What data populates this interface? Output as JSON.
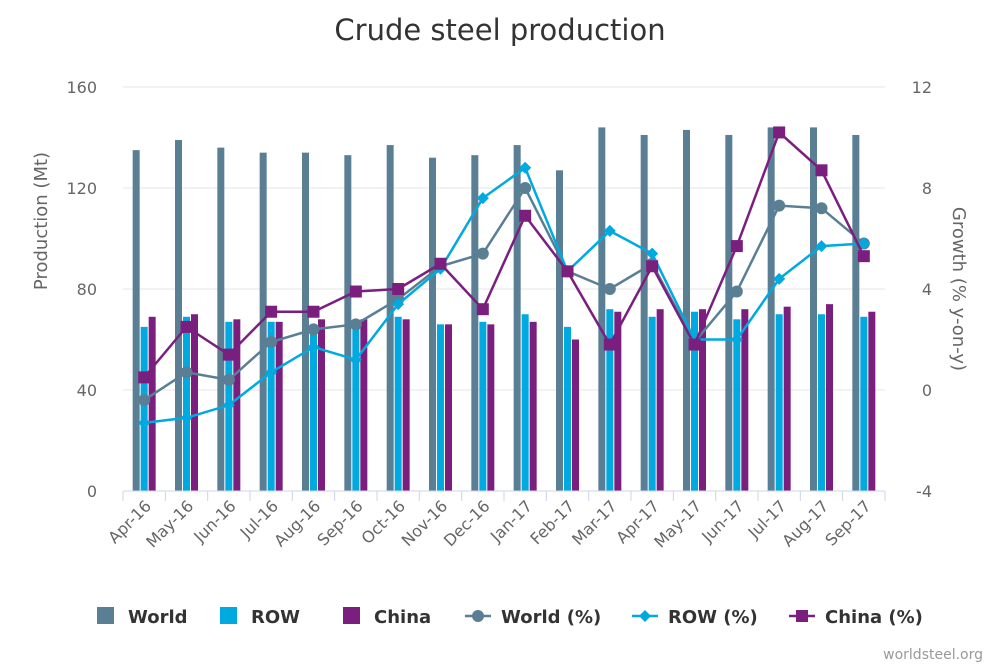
{
  "chart_data": {
    "type": "bar",
    "title": "Crude steel production",
    "categories": [
      "Apr-16",
      "May-16",
      "Jun-16",
      "Jul-16",
      "Aug-16",
      "Sep-16",
      "Oct-16",
      "Nov-16",
      "Dec-16",
      "Jan-17",
      "Feb-17",
      "Mar-17",
      "Apr-17",
      "May-17",
      "Jun-17",
      "Jul-17",
      "Aug-17",
      "Sep-17"
    ],
    "ylabel": "Production (Mt)",
    "ylim": [
      0,
      160
    ],
    "yticks": [
      "0",
      "40",
      "80",
      "120",
      "160"
    ],
    "y2label": "Growth (% y-on-y)",
    "y2lim": [
      -4,
      12
    ],
    "y2ticks": [
      "-4",
      "0",
      "4",
      "8",
      "12"
    ],
    "grid": true,
    "legend_position": "bottom",
    "series": [
      {
        "name": "World",
        "kind": "bar",
        "axis": "left",
        "color": "#5a7f94",
        "values": [
          135,
          139,
          136,
          134,
          134,
          133,
          137,
          132,
          133,
          137,
          127,
          144,
          141,
          143,
          141,
          144,
          144,
          141
        ]
      },
      {
        "name": "ROW",
        "kind": "bar",
        "axis": "left",
        "color": "#00a9e0",
        "values": [
          65,
          69,
          67,
          67,
          66,
          65,
          69,
          66,
          67,
          70,
          65,
          72,
          69,
          71,
          68,
          70,
          70,
          69
        ]
      },
      {
        "name": "China",
        "kind": "bar",
        "axis": "left",
        "color": "#7b1f7f",
        "values": [
          69,
          70,
          68,
          67,
          68,
          68,
          68,
          66,
          66,
          67,
          60,
          71,
          72,
          72,
          72,
          73,
          74,
          71
        ]
      },
      {
        "name": "World (%)",
        "kind": "line",
        "axis": "right",
        "color": "#5a7f94",
        "marker": "circle",
        "values": [
          -0.4,
          0.7,
          0.4,
          1.9,
          2.4,
          2.6,
          3.6,
          4.9,
          5.4,
          8.0,
          4.7,
          4.0,
          5.0,
          1.9,
          3.9,
          7.3,
          7.2,
          5.8
        ]
      },
      {
        "name": "ROW (%)",
        "kind": "line",
        "axis": "right",
        "color": "#00a9e0",
        "marker": "diamond",
        "values": [
          -1.3,
          -1.1,
          -0.6,
          0.7,
          1.7,
          1.2,
          3.4,
          4.8,
          7.6,
          8.8,
          4.7,
          6.3,
          5.4,
          2.0,
          2.0,
          4.4,
          5.7,
          5.8
        ]
      },
      {
        "name": "China (%)",
        "kind": "line",
        "axis": "right",
        "color": "#7b1f7f",
        "marker": "square",
        "values": [
          0.5,
          2.5,
          1.4,
          3.1,
          3.1,
          3.9,
          4.0,
          5.0,
          3.2,
          6.9,
          4.7,
          1.8,
          4.9,
          1.8,
          5.7,
          10.2,
          8.7,
          5.3
        ]
      }
    ],
    "credit": "worldsteel.org"
  }
}
